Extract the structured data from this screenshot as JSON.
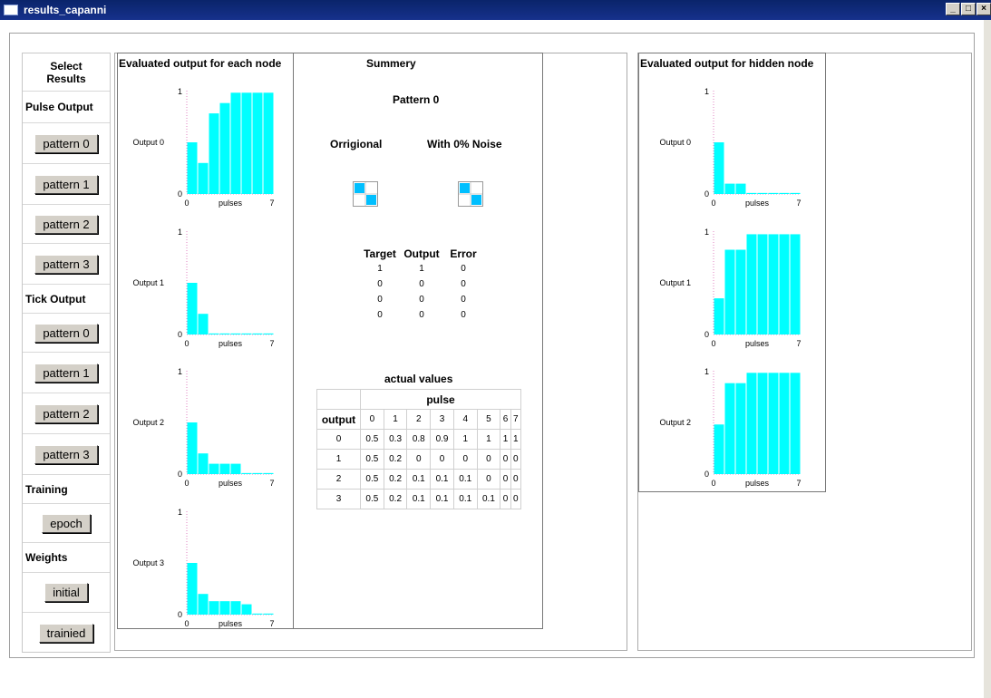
{
  "window": {
    "title": "results_capanni",
    "controls": [
      "_",
      "□",
      "×"
    ]
  },
  "left_menu": {
    "header": "Select Results",
    "sections": [
      {
        "label": "Pulse Output",
        "buttons": [
          "pattern 0",
          "pattern 1",
          "pattern 2",
          "pattern 3"
        ]
      },
      {
        "label": "Tick Output",
        "buttons": [
          "pattern 0",
          "pattern 1",
          "pattern 2",
          "pattern 3"
        ]
      },
      {
        "label": "Training",
        "buttons": [
          "epoch"
        ]
      },
      {
        "label": "Weights",
        "buttons": [
          "initial",
          "trainied"
        ]
      }
    ]
  },
  "node_panel": {
    "title": "Evaluated output for each node"
  },
  "summary": {
    "title": "Summery",
    "pattern_label": "Pattern 0",
    "original_label": "Orrigional",
    "noise_label": "With 0% Noise",
    "target_headers": [
      "Target",
      "Output",
      "Error"
    ],
    "target_rows": [
      [
        "1",
        "1",
        "0"
      ],
      [
        "0",
        "0",
        "0"
      ],
      [
        "0",
        "0",
        "0"
      ],
      [
        "0",
        "0",
        "0"
      ]
    ],
    "actual_title": "actual values",
    "actual_group_header": "pulse",
    "actual_row_header": "output",
    "pulse_cols": [
      "0",
      "1",
      "2",
      "3",
      "4",
      "5",
      "6",
      "7"
    ],
    "actual_rows": [
      {
        "output": "0",
        "values": [
          "0.5",
          "0.3",
          "0.8",
          "0.9",
          "1",
          "1",
          "1",
          "1"
        ]
      },
      {
        "output": "1",
        "values": [
          "0.5",
          "0.2",
          "0",
          "0",
          "0",
          "0",
          "0",
          "0"
        ]
      },
      {
        "output": "2",
        "values": [
          "0.5",
          "0.2",
          "0.1",
          "0.1",
          "0.1",
          "0",
          "0",
          "0"
        ]
      },
      {
        "output": "3",
        "values": [
          "0.5",
          "0.2",
          "0.1",
          "0.1",
          "0.1",
          "0.1",
          "0",
          "0"
        ]
      }
    ]
  },
  "hidden_panel": {
    "title": "Evaluated output for hidden node"
  },
  "colors": {
    "bar": "#00ffff",
    "axis_dots": "#e080c0",
    "pattern_fill": "#00bfff"
  },
  "chart_data": [
    {
      "type": "bar",
      "panel": "node",
      "ylabel": "Output 0",
      "xlabel": "pulses",
      "x_ticks": [
        "0",
        "7"
      ],
      "y_ticks": [
        "0",
        "1"
      ],
      "ylim": [
        0,
        1
      ],
      "values": [
        0.5,
        0.3,
        0.78,
        0.88,
        0.98,
        0.98,
        0.98,
        0.98
      ]
    },
    {
      "type": "bar",
      "panel": "node",
      "ylabel": "Output 1",
      "xlabel": "pulses",
      "x_ticks": [
        "0",
        "7"
      ],
      "y_ticks": [
        "0",
        "1"
      ],
      "ylim": [
        0,
        1
      ],
      "values": [
        0.5,
        0.2,
        0.01,
        0.01,
        0.01,
        0.01,
        0.01,
        0.01
      ]
    },
    {
      "type": "bar",
      "panel": "node",
      "ylabel": "Output 2",
      "xlabel": "pulses",
      "x_ticks": [
        "0",
        "7"
      ],
      "y_ticks": [
        "0",
        "1"
      ],
      "ylim": [
        0,
        1
      ],
      "values": [
        0.5,
        0.2,
        0.1,
        0.1,
        0.1,
        0.01,
        0.01,
        0.01
      ]
    },
    {
      "type": "bar",
      "panel": "node",
      "ylabel": "Output 3",
      "xlabel": "pulses",
      "x_ticks": [
        "0",
        "7"
      ],
      "y_ticks": [
        "0",
        "1"
      ],
      "ylim": [
        0,
        1
      ],
      "values": [
        0.5,
        0.2,
        0.13,
        0.13,
        0.13,
        0.1,
        0.01,
        0.01
      ]
    },
    {
      "type": "bar",
      "panel": "hidden",
      "ylabel": "Output 0",
      "xlabel": "pulses",
      "x_ticks": [
        "0",
        "7"
      ],
      "y_ticks": [
        "0",
        "1"
      ],
      "ylim": [
        0,
        1
      ],
      "values": [
        0.5,
        0.1,
        0.1,
        0.01,
        0.01,
        0.01,
        0.01,
        0.01
      ]
    },
    {
      "type": "bar",
      "panel": "hidden",
      "ylabel": "Output 1",
      "xlabel": "pulses",
      "x_ticks": [
        "0",
        "7"
      ],
      "y_ticks": [
        "0",
        "1"
      ],
      "ylim": [
        0,
        1
      ],
      "values": [
        0.35,
        0.82,
        0.82,
        0.97,
        0.97,
        0.97,
        0.97,
        0.97
      ]
    },
    {
      "type": "bar",
      "panel": "hidden",
      "ylabel": "Output 2",
      "xlabel": "pulses",
      "x_ticks": [
        "0",
        "7"
      ],
      "y_ticks": [
        "0",
        "1"
      ],
      "ylim": [
        0,
        1
      ],
      "values": [
        0.48,
        0.88,
        0.88,
        0.98,
        0.98,
        0.98,
        0.98,
        0.98
      ]
    }
  ]
}
